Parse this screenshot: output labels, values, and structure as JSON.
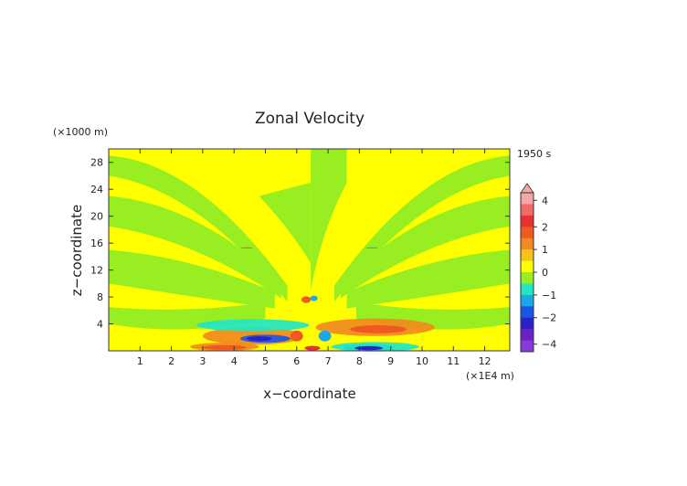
{
  "chart_data": {
    "type": "heatmap",
    "title": "Zonal Velocity",
    "xlabel": "x−coordinate",
    "ylabel": "z−coordinate",
    "x_unit": "(×1E4 m)",
    "y_unit": "(×1000 m)",
    "time_label": "1950 s",
    "xlim": [
      0,
      12.8
    ],
    "ylim": [
      0,
      30
    ],
    "x_ticks": [
      1,
      2,
      3,
      4,
      5,
      6,
      7,
      8,
      9,
      10,
      11,
      12
    ],
    "y_ticks": [
      4,
      8,
      12,
      16,
      20,
      24,
      28
    ],
    "colorbar": {
      "tick_labels": [
        "4",
        "2",
        "1",
        "0",
        "−1",
        "−2",
        "−4"
      ],
      "tick_values": [
        4,
        2,
        1,
        0,
        -1,
        -2,
        -4
      ],
      "levels": [
        {
          "lo": 3.5,
          "hi": 5.0,
          "color": "#f4a6a6"
        },
        {
          "lo": 2.5,
          "hi": 3.5,
          "color": "#f06a6a"
        },
        {
          "lo": 2.0,
          "hi": 2.5,
          "color": "#e83030"
        },
        {
          "lo": 1.5,
          "hi": 2.0,
          "color": "#ee5a1f"
        },
        {
          "lo": 1.0,
          "hi": 1.5,
          "color": "#f08a20"
        },
        {
          "lo": 0.5,
          "hi": 1.0,
          "color": "#f7c21a"
        },
        {
          "lo": 0.0,
          "hi": 0.5,
          "color": "#ffff00"
        },
        {
          "lo": -0.5,
          "hi": 0.0,
          "color": "#99ee22"
        },
        {
          "lo": -1.0,
          "hi": -0.5,
          "color": "#22e6c4"
        },
        {
          "lo": -1.5,
          "hi": -1.0,
          "color": "#1aa8e6"
        },
        {
          "lo": -2.0,
          "hi": -1.5,
          "color": "#1a56e6"
        },
        {
          "lo": -2.5,
          "hi": -2.0,
          "color": "#2a22c8"
        },
        {
          "lo": -3.5,
          "hi": -2.5,
          "color": "#6a22c8"
        },
        {
          "lo": -5.0,
          "hi": -3.5,
          "color": "#8a3ad8"
        }
      ]
    },
    "field_description_regions": [
      {
        "value": 0.25,
        "shape": "background"
      },
      {
        "value": -0.25,
        "shape": "fan-stripes",
        "center_x": 6.45
      },
      {
        "value": 1.2,
        "center": [
          4.6,
          2.2
        ],
        "radius": [
          1.6,
          1.3
        ]
      },
      {
        "value": -1.6,
        "center": [
          5.0,
          1.8
        ],
        "radius": [
          0.8,
          0.6
        ]
      },
      {
        "value": -1.0,
        "center": [
          4.6,
          3.8
        ],
        "radius": [
          1.8,
          0.9
        ]
      },
      {
        "value": 1.2,
        "center": [
          8.5,
          3.5
        ],
        "radius": [
          1.9,
          1.3
        ]
      },
      {
        "value": -1.7,
        "center": [
          8.3,
          0.5
        ],
        "radius": [
          0.8,
          0.5
        ]
      },
      {
        "value": 1.0,
        "center": [
          3.7,
          0.6
        ],
        "radius": [
          1.1,
          0.6
        ]
      },
      {
        "value": -1.0,
        "center": [
          8.5,
          0.6
        ],
        "radius": [
          1.4,
          0.7
        ]
      }
    ]
  }
}
